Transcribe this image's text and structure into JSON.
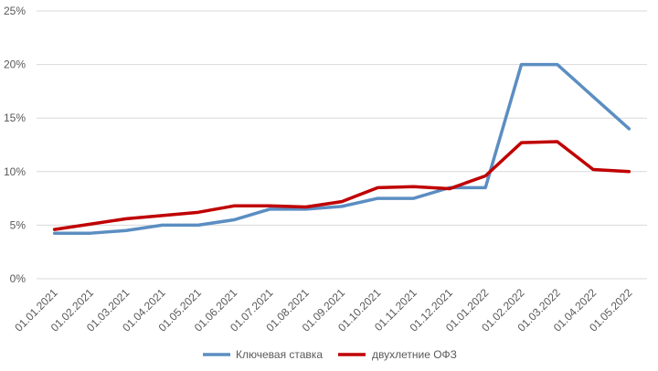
{
  "chart_data": {
    "type": "line",
    "categories": [
      "01.01.2021",
      "01.02.2021",
      "01.03.2021",
      "01.04.2021",
      "01.05.2021",
      "01.06.2021",
      "01.07.2021",
      "01.08.2021",
      "01.09.2021",
      "01.10.2021",
      "01.11.2021",
      "01.12.2021",
      "01.01.2022",
      "01.02.2022",
      "01.03.2022",
      "01.04.2022",
      "01.05.2022"
    ],
    "y_ticks": [
      "0%",
      "5%",
      "10%",
      "15%",
      "20%",
      "25%"
    ],
    "ylim": [
      0,
      25
    ],
    "grid": true,
    "legend_position": "bottom",
    "series": [
      {
        "name": "Ключевая ставка",
        "color": "#5b8ec2",
        "values": [
          4.25,
          4.25,
          4.5,
          5.0,
          5.0,
          5.5,
          6.5,
          6.5,
          6.75,
          7.5,
          7.5,
          8.5,
          8.5,
          20.0,
          20.0,
          17.0,
          14.0
        ]
      },
      {
        "name": "двухлетние ОФЗ",
        "color": "#c00000",
        "values": [
          4.6,
          5.1,
          5.6,
          5.9,
          6.2,
          6.8,
          6.8,
          6.7,
          7.2,
          8.5,
          8.6,
          8.4,
          9.6,
          12.7,
          12.8,
          10.2,
          10.0
        ]
      }
    ]
  }
}
